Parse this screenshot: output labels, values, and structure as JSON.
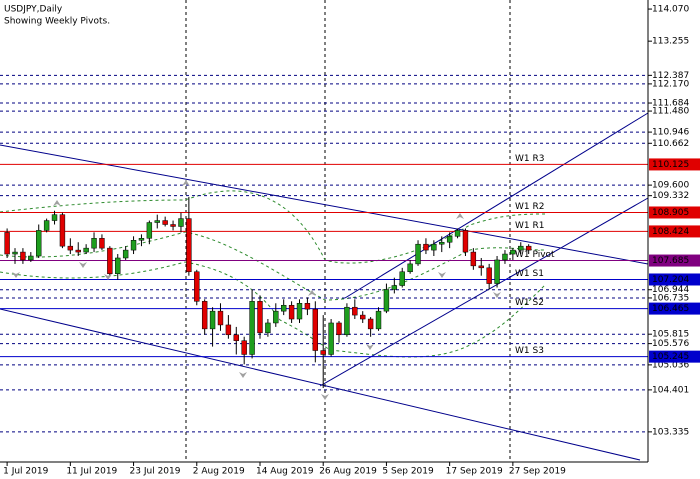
{
  "chart_data": {
    "type": "candlestick",
    "title": "USDJPY,Daily",
    "subtitle": "Showing Weekly Pivots.",
    "bull_color": "#1e9e1e",
    "bear_color": "#e00000",
    "open": [
      108.4,
      107.85,
      107.9,
      107.7,
      107.8,
      108.45,
      108.7,
      108.85,
      108.05,
      107.95,
      107.9,
      108.0,
      108.25,
      108.0,
      107.35,
      107.75,
      107.95,
      108.2,
      108.25,
      108.65,
      108.7,
      108.6,
      108.55,
      108.75,
      107.4,
      106.65,
      105.95,
      106.4,
      106.05,
      105.8,
      105.65,
      105.3,
      106.65,
      105.85,
      106.1,
      106.4,
      106.55,
      106.2,
      106.6,
      106.45,
      105.4,
      105.3,
      106.1,
      105.8,
      106.5,
      106.3,
      106.2,
      105.95,
      106.4,
      106.95,
      107.05,
      107.4,
      107.6,
      108.1,
      107.95,
      108.1,
      108.15,
      108.3,
      108.45,
      107.9,
      107.55,
      107.5,
      107.1,
      107.7,
      107.85,
      107.95,
      108.05
    ],
    "high": [
      108.5,
      108.0,
      108.0,
      107.9,
      108.6,
      108.75,
      108.95,
      108.9,
      108.25,
      108.15,
      108.1,
      108.4,
      108.35,
      108.05,
      107.85,
      108.05,
      108.3,
      108.35,
      108.7,
      108.85,
      108.8,
      108.7,
      108.9,
      109.3,
      107.45,
      106.7,
      106.5,
      106.6,
      106.3,
      106.0,
      105.75,
      106.95,
      106.8,
      106.2,
      106.6,
      106.7,
      106.65,
      106.7,
      106.75,
      106.65,
      106.3,
      106.2,
      106.15,
      106.6,
      106.7,
      106.4,
      106.25,
      106.5,
      107.1,
      107.25,
      107.5,
      107.7,
      108.2,
      108.25,
      108.2,
      108.3,
      108.4,
      108.5,
      108.5,
      108.0,
      107.75,
      107.6,
      107.8,
      107.95,
      108.0,
      108.15,
      108.1
    ],
    "low": [
      107.75,
      107.6,
      107.6,
      107.65,
      107.75,
      108.4,
      108.6,
      108.0,
      107.85,
      107.8,
      107.85,
      107.9,
      107.95,
      107.3,
      107.2,
      107.7,
      107.85,
      108.05,
      108.1,
      108.5,
      108.55,
      108.45,
      108.4,
      107.3,
      106.55,
      105.8,
      105.5,
      105.9,
      105.7,
      105.3,
      105.05,
      105.2,
      105.7,
      105.75,
      106.0,
      106.3,
      106.1,
      106.1,
      106.3,
      105.1,
      104.45,
      105.25,
      105.6,
      105.75,
      106.2,
      106.1,
      105.75,
      105.9,
      106.35,
      106.85,
      107.0,
      107.35,
      107.55,
      107.85,
      107.8,
      107.9,
      108.0,
      108.25,
      107.8,
      107.45,
      107.3,
      106.95,
      107.0,
      107.6,
      107.7,
      107.85,
      107.85
    ],
    "close": [
      107.85,
      107.9,
      107.7,
      107.8,
      108.45,
      108.7,
      108.85,
      108.05,
      107.95,
      107.9,
      108.0,
      108.25,
      108.0,
      107.35,
      107.75,
      107.95,
      108.2,
      108.25,
      108.65,
      108.7,
      108.6,
      108.55,
      108.75,
      107.4,
      106.65,
      105.95,
      106.4,
      106.05,
      105.8,
      105.65,
      105.3,
      106.65,
      105.85,
      106.1,
      106.4,
      106.55,
      106.2,
      106.6,
      106.45,
      105.4,
      105.3,
      106.1,
      105.8,
      106.5,
      106.3,
      106.2,
      105.95,
      106.4,
      106.95,
      107.05,
      107.4,
      107.6,
      108.1,
      107.95,
      108.1,
      108.15,
      108.3,
      108.45,
      107.9,
      107.55,
      107.5,
      107.1,
      107.7,
      107.85,
      107.95,
      108.05,
      107.95
    ],
    "xlim": [
      -0.9,
      81.1
    ],
    "ylim": [
      102.57,
      114.3
    ],
    "xticks": [
      {
        "value": 0,
        "label": "1 Jul 2019"
      },
      {
        "value": 8,
        "label": "11 Jul 2019"
      },
      {
        "value": 16,
        "label": "23 Jul 2019"
      },
      {
        "value": 24,
        "label": "2 Aug 2019"
      },
      {
        "value": 32,
        "label": "14 Aug 2019"
      },
      {
        "value": 40,
        "label": "26 Aug 2019"
      },
      {
        "value": 48,
        "label": "5 Sep 2019"
      },
      {
        "value": 56,
        "label": "17 Sep 2019"
      },
      {
        "value": 64,
        "label": "27 Sep 2019"
      }
    ],
    "yticks": [
      {
        "value": 114.07,
        "label": "114.070"
      },
      113.255
    ],
    "hlines": [
      112.387,
      {
        "value": 112.17,
        "label": "112.170"
      },
      111.684,
      {
        "value": 111.48,
        "label": "111.480"
      },
      110.946,
      110.662,
      {
        "value": 109.6,
        "label": "109.600"
      },
      109.332,
      106.944,
      106.735,
      105.815,
      105.576,
      105.036,
      104.401,
      103.335
    ],
    "levels": [
      {
        "name": "W1 R3",
        "value": 110.125,
        "color": "#e00000"
      },
      {
        "name": "W1 R2",
        "value": 108.905,
        "color": "#e00000"
      },
      {
        "name": "W1 R1",
        "value": 108.424,
        "color": "#e00000"
      },
      {
        "name": "W1 Pivot",
        "value": 107.685,
        "color": "#800080"
      },
      {
        "name": "W1 S1",
        "value": 107.204,
        "color": "#0000cc"
      },
      {
        "name": "W1 S2",
        "value": 106.465,
        "color": "#0000cc"
      },
      {
        "name": "W1 S3",
        "value": 105.245,
        "color": "#0000cc"
      }
    ]
  }
}
